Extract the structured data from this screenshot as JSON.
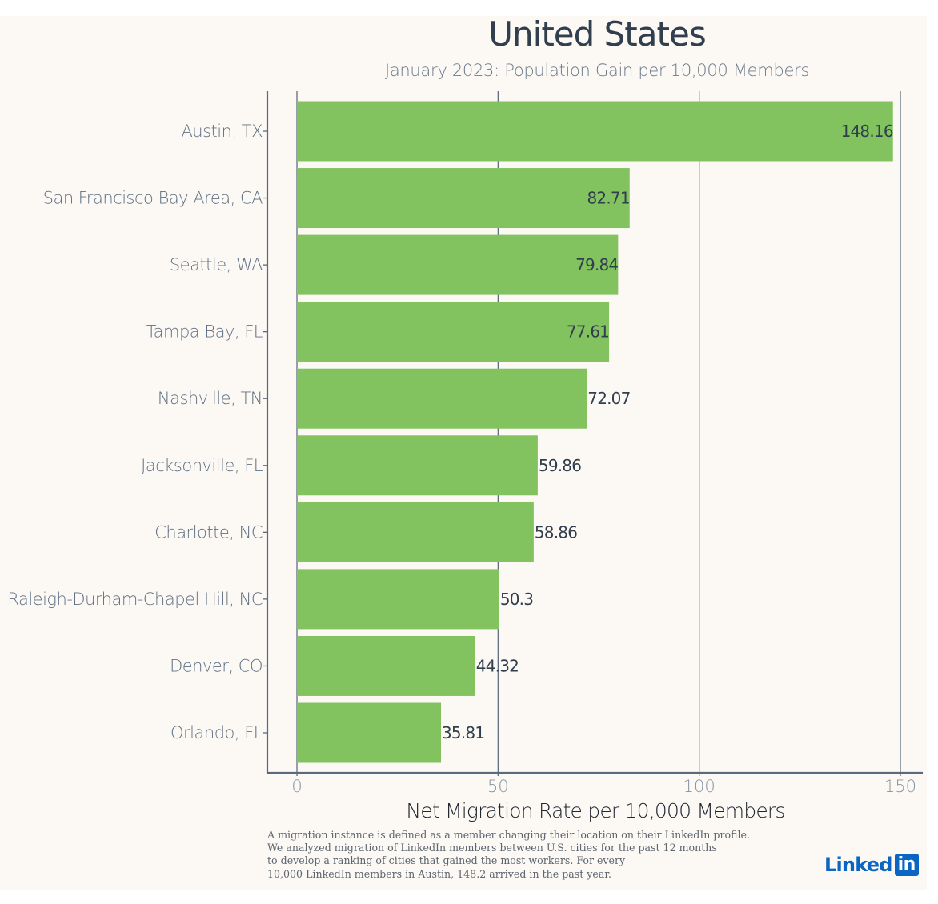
{
  "chart_data": {
    "type": "bar",
    "orientation": "horizontal",
    "title": "United States",
    "subtitle": "January 2023: Population Gain per 10,000 Members",
    "xlabel": "Net Migration Rate per 10,000 Members",
    "ylabel": "",
    "categories": [
      "Austin, TX",
      "San Francisco Bay Area, CA",
      "Seattle, WA",
      "Tampa Bay, FL",
      "Nashville, TN",
      "Jacksonville, FL",
      "Charlotte, NC",
      "Raleigh-Durham-Chapel Hill, NC",
      "Denver, CO",
      "Orlando, FL"
    ],
    "values": [
      148.16,
      82.71,
      79.84,
      77.61,
      72.07,
      59.86,
      58.86,
      50.3,
      44.32,
      35.81
    ],
    "value_labels": [
      "148.16",
      "82.71",
      "79.84",
      "77.61",
      "72.07",
      "59.86",
      "58.86",
      "50.3",
      "44.32",
      "35.81"
    ],
    "xlim": [
      -7.5,
      155.5
    ],
    "xticks": [
      0,
      50,
      100,
      150
    ],
    "xtick_labels": [
      "0",
      "50",
      "100",
      "150"
    ],
    "grid": "vertical",
    "legend": "none",
    "bar_color": "#82c360"
  },
  "colors": {
    "background": "#fcf9f4",
    "bar": "#82c360",
    "grid": "#5f6e80",
    "axis": "#5a6a7e",
    "brand": "#0a66c2"
  },
  "footnote": [
    "A migration instance is defined as a member changing their location on their LinkedIn profile.",
    "We analyzed migration of LinkedIn members between U.S. cities for the past 12 months",
    "to develop a ranking of cities that gained the most workers. For every",
    "10,000 LinkedIn members in Austin, 148.2 arrived in the past year."
  ],
  "logo": {
    "text": "Linked",
    "box_text": "in",
    "icon": "linkedin-logo"
  }
}
